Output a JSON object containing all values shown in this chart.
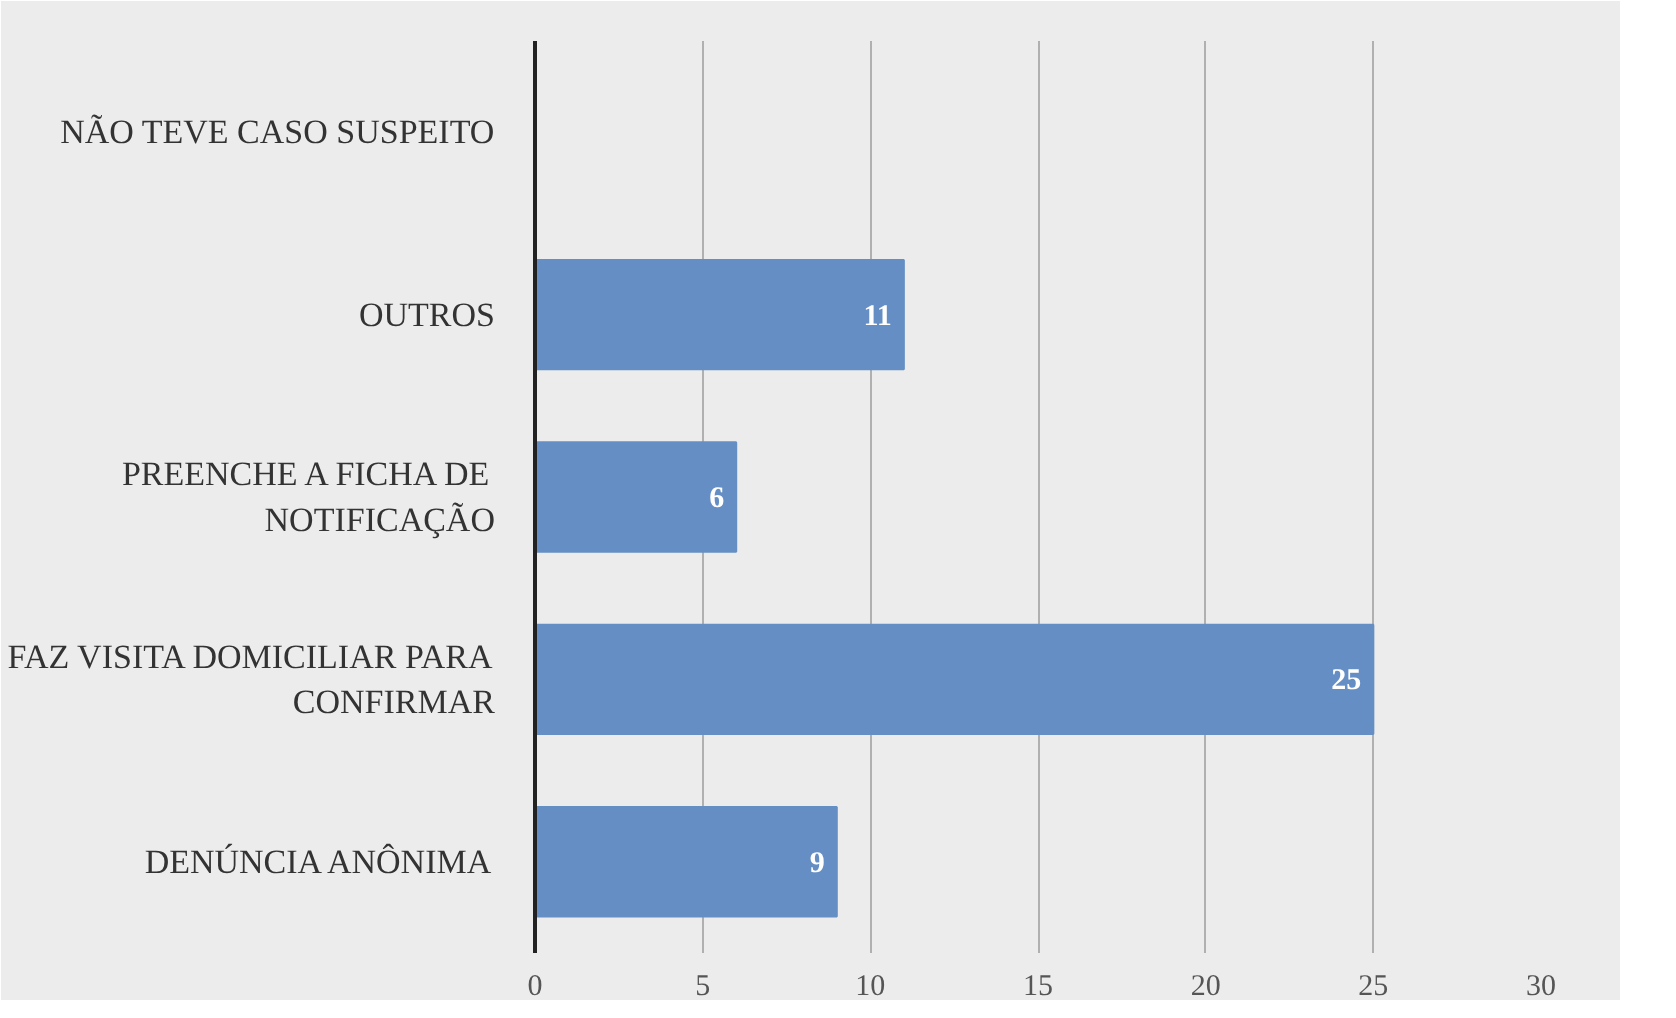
{
  "chart_data": {
    "type": "bar",
    "orientation": "horizontal",
    "categories": [
      "NÃO TEVE CASO SUSPEITO",
      "OUTROS",
      "PREENCHE A FICHA DE NOTIFICAÇÃO",
      "FAZ VISITA DOMICILIAR PARA CONFIRMAR",
      "DENÚNCIA ANÔNIMA"
    ],
    "values": [
      null,
      11,
      6,
      25,
      9
    ],
    "value_labels": [
      null,
      "11",
      "6",
      "25",
      "9"
    ],
    "color": "#658fc4",
    "xlim": [
      0,
      30
    ],
    "xticks": [
      0,
      5,
      10,
      15,
      20,
      25,
      30
    ],
    "grid": "x"
  }
}
